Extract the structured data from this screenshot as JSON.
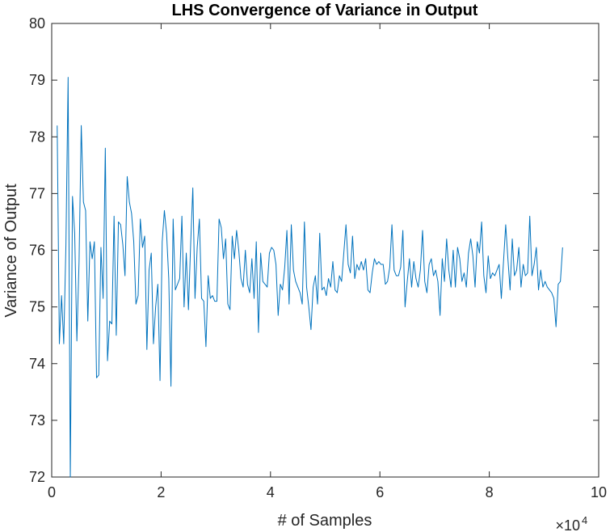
{
  "chart_data": {
    "type": "line",
    "title": "LHS Convergence of Variance in Output",
    "xlabel": "# of Samples",
    "ylabel": "Variance of Output",
    "x_exponent_label": "×10",
    "x_exponent_power": "4",
    "xlim": [
      0,
      100000
    ],
    "ylim": [
      72,
      80
    ],
    "xticks": [
      0,
      20000,
      40000,
      60000,
      80000,
      100000
    ],
    "xtick_labels": [
      "0",
      "2",
      "4",
      "6",
      "8",
      "10"
    ],
    "yticks": [
      72,
      73,
      74,
      75,
      76,
      77,
      78,
      79,
      80
    ],
    "ytick_labels": [
      "72",
      "73",
      "74",
      "75",
      "76",
      "77",
      "78",
      "79",
      "80"
    ],
    "grid": false,
    "legend": "none",
    "line_color": "#0072BD",
    "x_step": 400,
    "x_start": 1000,
    "series": [
      {
        "values": [
          78.2,
          74.35,
          75.2,
          74.35,
          76.1,
          79.05,
          72.0,
          76.95,
          76.3,
          74.4,
          75.8,
          78.2,
          76.85,
          76.7,
          74.75,
          76.15,
          75.85,
          76.15,
          73.75,
          73.8,
          76.05,
          75.15,
          77.8,
          74.05,
          74.75,
          74.7,
          76.6,
          74.5,
          76.5,
          76.45,
          76.1,
          75.55,
          77.3,
          76.85,
          76.65,
          76.15,
          75.05,
          75.2,
          76.55,
          76.05,
          76.25,
          74.25,
          75.65,
          75.95,
          74.35,
          75.0,
          75.4,
          73.7,
          76.15,
          76.7,
          76.3,
          75.5,
          73.6,
          76.55,
          75.3,
          75.4,
          75.5,
          76.6,
          75.0,
          75.95,
          74.95,
          76.1,
          77.1,
          75.15,
          76.05,
          76.55,
          75.15,
          75.1,
          74.3,
          75.55,
          75.15,
          75.2,
          75.1,
          75.1,
          76.55,
          76.4,
          75.85,
          76.2,
          75.05,
          74.95,
          76.25,
          75.85,
          76.35,
          76.0,
          75.5,
          75.35,
          76.0,
          75.4,
          75.25,
          75.85,
          75.15,
          76.15,
          74.55,
          75.95,
          75.45,
          75.4,
          75.35,
          75.95,
          76.05,
          76.0,
          75.75,
          74.85,
          75.4,
          75.3,
          75.7,
          76.35,
          75.05,
          76.45,
          75.65,
          75.45,
          75.35,
          75.25,
          75.05,
          76.5,
          75.35,
          75.0,
          74.6,
          75.35,
          75.55,
          75.05,
          76.3,
          75.3,
          75.35,
          75.2,
          75.5,
          75.35,
          75.8,
          75.3,
          75.25,
          75.55,
          75.45,
          75.95,
          76.45,
          75.75,
          75.6,
          76.25,
          75.5,
          75.75,
          75.65,
          75.8,
          75.65,
          75.85,
          75.3,
          75.25,
          75.6,
          75.85,
          75.75,
          75.8,
          75.75,
          75.75,
          75.4,
          75.45,
          75.7,
          76.45,
          75.65,
          75.55,
          75.55,
          75.7,
          76.35,
          75.0,
          75.45,
          75.85,
          75.35,
          75.8,
          75.5,
          75.35,
          75.65,
          76.35,
          75.45,
          75.25,
          75.75,
          75.85,
          75.55,
          75.65,
          75.45,
          74.85,
          75.85,
          75.45,
          76.2,
          75.65,
          75.35,
          76.0,
          75.35,
          76.05,
          75.85,
          75.45,
          75.6,
          75.35,
          75.95,
          76.2,
          75.9,
          75.35,
          76.15,
          75.95,
          76.5,
          75.55,
          75.25,
          75.9,
          75.5,
          75.6,
          75.55,
          75.65,
          75.75,
          75.15,
          75.8,
          76.45,
          75.85,
          75.3,
          76.2,
          75.55,
          75.65,
          76.05,
          75.35,
          75.75,
          75.55,
          75.6,
          76.6,
          75.55,
          75.75,
          76.05,
          75.3,
          75.65,
          75.35,
          75.45,
          75.35,
          75.3,
          75.25,
          75.15,
          74.65,
          75.4,
          75.45,
          76.05
        ]
      }
    ]
  }
}
